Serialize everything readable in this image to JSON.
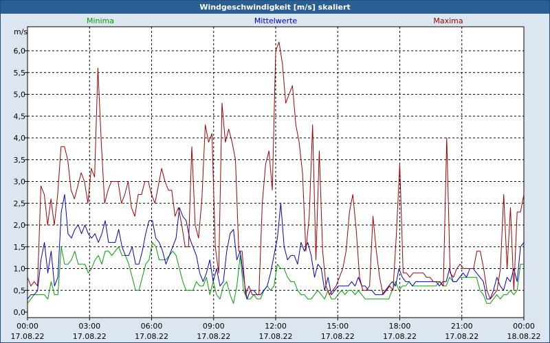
{
  "chart_data": {
    "type": "line",
    "title": "Windgeschwindigkeit [m/s] skaliert",
    "ylabel": "m/s",
    "ylim": [
      0,
      6.3
    ],
    "xlim": [
      0,
      144
    ],
    "yticks": [
      {
        "v": 0.0,
        "label": "0,0"
      },
      {
        "v": 0.5,
        "label": "0,5"
      },
      {
        "v": 1.0,
        "label": "1,0"
      },
      {
        "v": 1.5,
        "label": "1,5"
      },
      {
        "v": 2.0,
        "label": "2,0"
      },
      {
        "v": 2.5,
        "label": "2,5"
      },
      {
        "v": 3.0,
        "label": "3,0"
      },
      {
        "v": 3.5,
        "label": "3,5"
      },
      {
        "v": 4.0,
        "label": "4,0"
      },
      {
        "v": 4.5,
        "label": "4,5"
      },
      {
        "v": 5.0,
        "label": "5,0"
      },
      {
        "v": 5.5,
        "label": "5,5"
      },
      {
        "v": 6.0,
        "label": "6,0"
      }
    ],
    "xticks": [
      {
        "v": 0,
        "time": "00:00",
        "date": "17.08.22"
      },
      {
        "v": 18,
        "time": "03:00",
        "date": "17.08.22"
      },
      {
        "v": 36,
        "time": "06:00",
        "date": "17.08.22"
      },
      {
        "v": 54,
        "time": "09:00",
        "date": "17.08.22"
      },
      {
        "v": 72,
        "time": "12:00",
        "date": "17.08.22"
      },
      {
        "v": 90,
        "time": "15:00",
        "date": "17.08.22"
      },
      {
        "v": 108,
        "time": "18:00",
        "date": "17.08.22"
      },
      {
        "v": 126,
        "time": "21:00",
        "date": "17.08.22"
      },
      {
        "v": 144,
        "time": "00:00",
        "date": "18.08.22"
      }
    ],
    "series": [
      {
        "name": "Minima",
        "color": "#00a000",
        "values": [
          0.2,
          0.3,
          0.4,
          0.4,
          0.4,
          0.4,
          0.3,
          0.7,
          0.4,
          0.4,
          1.5,
          1.1,
          1.1,
          1.2,
          1.4,
          1.1,
          1.1,
          1.1,
          0.9,
          1.0,
          1.2,
          1.3,
          1.1,
          1.4,
          1.4,
          1.3,
          1.4,
          1.5,
          1.3,
          1.3,
          1.1,
          0.8,
          0.5,
          0.5,
          0.8,
          1.1,
          1.2,
          1.6,
          1.5,
          1.2,
          1.2,
          1.2,
          1.3,
          1.4,
          1.3,
          1.0,
          0.7,
          0.5,
          0.5,
          0.5,
          0.7,
          0.6,
          0.6,
          0.8,
          0.4,
          0.7,
          0.4,
          0.3,
          0.6,
          0.7,
          0.4,
          0.2,
          0.6,
          1.3,
          0.5,
          0.3,
          0.3,
          0.4,
          0.3,
          0.3,
          0.5,
          0.6,
          0.5,
          0.6,
          1.1,
          1.0,
          1.0,
          0.8,
          0.7,
          0.7,
          0.5,
          0.4,
          0.4,
          0.3,
          0.3,
          0.4,
          0.5,
          0.4,
          0.3,
          0.5,
          0.3,
          0.3,
          0.4,
          0.5,
          0.4,
          0.5,
          0.5,
          0.4,
          0.5,
          0.4,
          0.3,
          0.3,
          0.3,
          0.3,
          0.3,
          0.3,
          0.3,
          0.3,
          0.5,
          0.7,
          0.5,
          0.6,
          0.6,
          0.7,
          0.6,
          0.6,
          0.6,
          0.6,
          0.6,
          0.6,
          0.6,
          0.6,
          0.7,
          0.6,
          0.6,
          0.8,
          0.7,
          0.7,
          0.8,
          0.8,
          0.8,
          0.8,
          0.8,
          0.8,
          0.5,
          0.4,
          0.2,
          0.2,
          0.3,
          0.4,
          0.3,
          0.4,
          0.4,
          0.5,
          0.4,
          0.5,
          1.1,
          1.1
        ]
      },
      {
        "name": "Mittelwerte",
        "color": "#0000c0",
        "values": [
          0.3,
          0.4,
          0.4,
          0.5,
          1.2,
          1.6,
          0.9,
          1.4,
          0.6,
          0.8,
          2.3,
          2.7,
          1.8,
          1.7,
          1.9,
          2.0,
          1.8,
          2.0,
          1.8,
          1.7,
          1.8,
          1.6,
          1.8,
          2.1,
          1.6,
          1.6,
          1.6,
          1.9,
          1.5,
          1.3,
          1.3,
          1.5,
          1.1,
          1.1,
          1.4,
          1.8,
          2.1,
          2.1,
          1.7,
          1.6,
          1.4,
          1.1,
          1.3,
          1.5,
          1.7,
          2.4,
          2.2,
          2.1,
          1.7,
          1.5,
          1.3,
          0.9,
          0.7,
          0.9,
          1.2,
          0.7,
          1.0,
          0.6,
          0.7,
          1.4,
          1.8,
          1.9,
          1.2,
          1.4,
          0.8,
          0.3,
          0.5,
          0.5,
          0.4,
          0.4,
          0.5,
          0.6,
          0.9,
          1.3,
          1.7,
          2.5,
          1.5,
          1.2,
          1.3,
          1.3,
          1.1,
          1.6,
          1.4,
          1.6,
          1.3,
          0.8,
          1.1,
          1.0,
          0.5,
          0.8,
          0.4,
          0.5,
          0.6,
          0.6,
          0.6,
          0.6,
          0.7,
          0.6,
          0.8,
          0.6,
          0.6,
          0.5,
          0.5,
          0.4,
          0.4,
          0.4,
          0.5,
          0.6,
          0.7,
          0.6,
          1.0,
          0.8,
          0.7,
          0.7,
          0.6,
          0.7,
          0.7,
          0.7,
          0.7,
          0.7,
          0.7,
          0.7,
          0.6,
          0.7,
          0.7,
          1.0,
          0.7,
          0.7,
          0.8,
          0.9,
          0.8,
          1.0,
          1.0,
          0.9,
          0.8,
          0.7,
          0.3,
          0.3,
          0.5,
          0.8,
          0.6,
          0.5,
          0.8,
          0.7,
          1.0,
          0.7,
          1.5,
          1.6
        ]
      },
      {
        "name": "Maxima",
        "color": "#a00000",
        "values": [
          0.8,
          0.6,
          0.7,
          0.6,
          2.9,
          2.7,
          2.0,
          2.6,
          2.0,
          2.7,
          3.8,
          3.8,
          3.5,
          2.8,
          2.6,
          2.9,
          3.2,
          3.0,
          2.5,
          3.3,
          3.1,
          5.6,
          3.9,
          2.5,
          2.8,
          3.0,
          3.0,
          3.0,
          2.5,
          2.7,
          3.0,
          2.4,
          2.2,
          2.7,
          2.7,
          3.0,
          3.0,
          2.7,
          2.5,
          2.9,
          3.3,
          3.0,
          2.8,
          2.8,
          2.2,
          2.4,
          2.0,
          1.5,
          1.5,
          3.8,
          2.0,
          1.7,
          2.6,
          4.3,
          3.9,
          4.1,
          1.5,
          0.9,
          4.8,
          3.9,
          4.2,
          3.9,
          3.5,
          1.4,
          1.4,
          0.4,
          0.6,
          0.4,
          0.4,
          0.4,
          2.5,
          3.4,
          3.7,
          2.8,
          6.0,
          6.2,
          5.7,
          4.8,
          5.0,
          5.2,
          4.3,
          3.9,
          3.2,
          1.4,
          2.2,
          4.3,
          1.2,
          3.7,
          1.4,
          0.6,
          0.4,
          0.5,
          0.6,
          0.8,
          1.0,
          1.4,
          2.3,
          2.7,
          1.9,
          0.8,
          0.5,
          0.5,
          0.6,
          2.2,
          1.4,
          0.8,
          0.4,
          0.5,
          0.6,
          0.5,
          1.8,
          3.4,
          0.9,
          0.9,
          0.8,
          0.9,
          0.9,
          0.9,
          0.9,
          0.8,
          0.8,
          0.7,
          0.7,
          0.7,
          0.6,
          4.0,
          0.9,
          0.8,
          1.0,
          1.1,
          1.0,
          1.0,
          1.0,
          1.0,
          1.4,
          1.4,
          1.0,
          0.5,
          0.3,
          0.4,
          0.5,
          1.0,
          2.7,
          1.0,
          2.4,
          0.5,
          2.3,
          2.3,
          2.7
        ]
      }
    ]
  }
}
